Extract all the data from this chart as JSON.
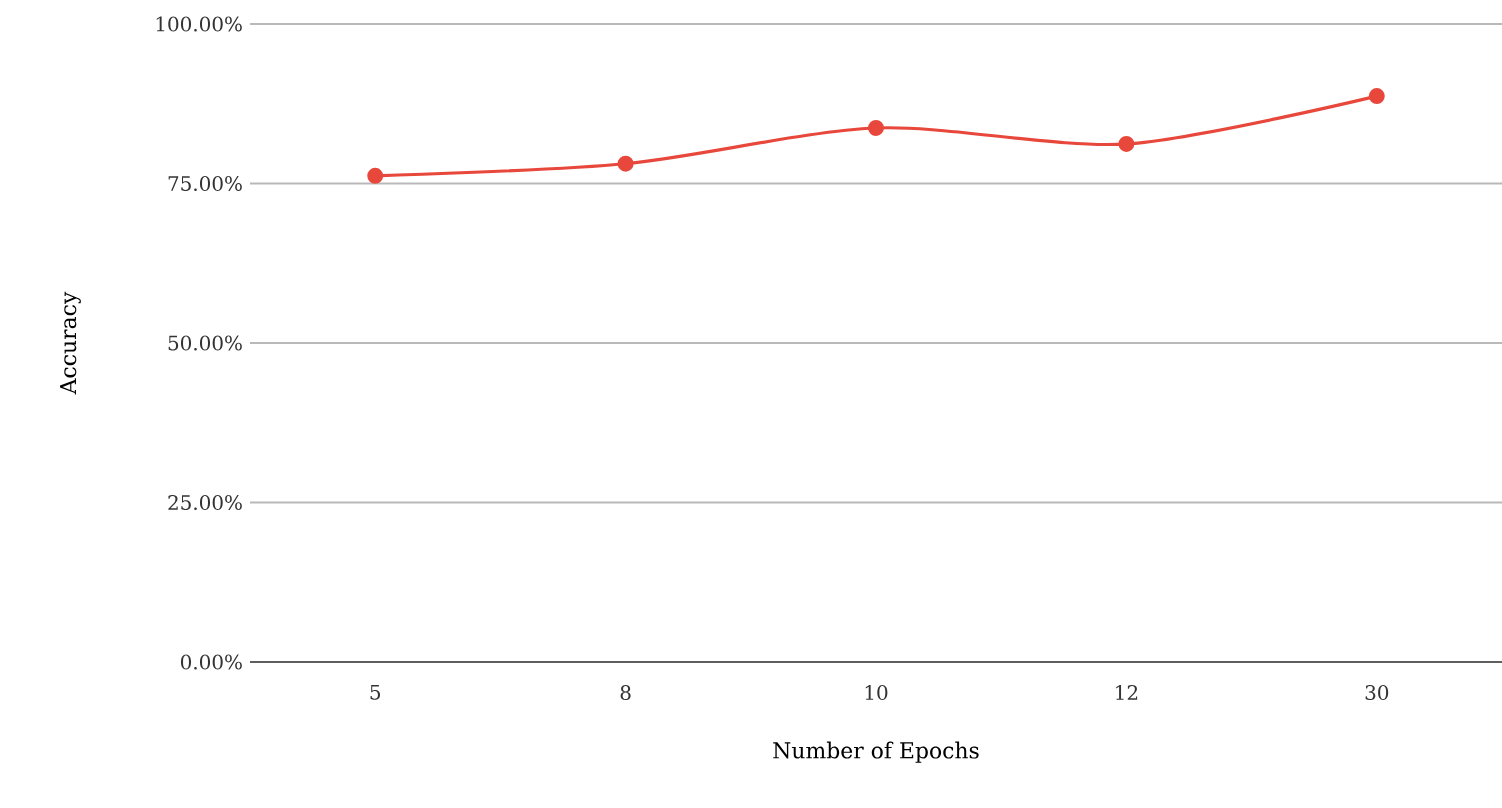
{
  "chart_data": {
    "type": "line",
    "xlabel": "Number of Epochs",
    "ylabel": "Accuracy",
    "categories": [
      "5",
      "8",
      "10",
      "12",
      "30"
    ],
    "series": [
      {
        "color": "#e8473b",
        "values": [
          76.2,
          78.1,
          83.7,
          81.2,
          88.7
        ]
      }
    ],
    "ylim": [
      0,
      100
    ],
    "yticks": [
      {
        "value": 0,
        "label": "0.00%"
      },
      {
        "value": 25,
        "label": "25.00%"
      },
      {
        "value": 50,
        "label": "50.00%"
      },
      {
        "value": 75,
        "label": "75.00%"
      },
      {
        "value": 100,
        "label": "100.00%"
      }
    ],
    "grid": "y",
    "marker": "circle",
    "line_style": "solid"
  }
}
